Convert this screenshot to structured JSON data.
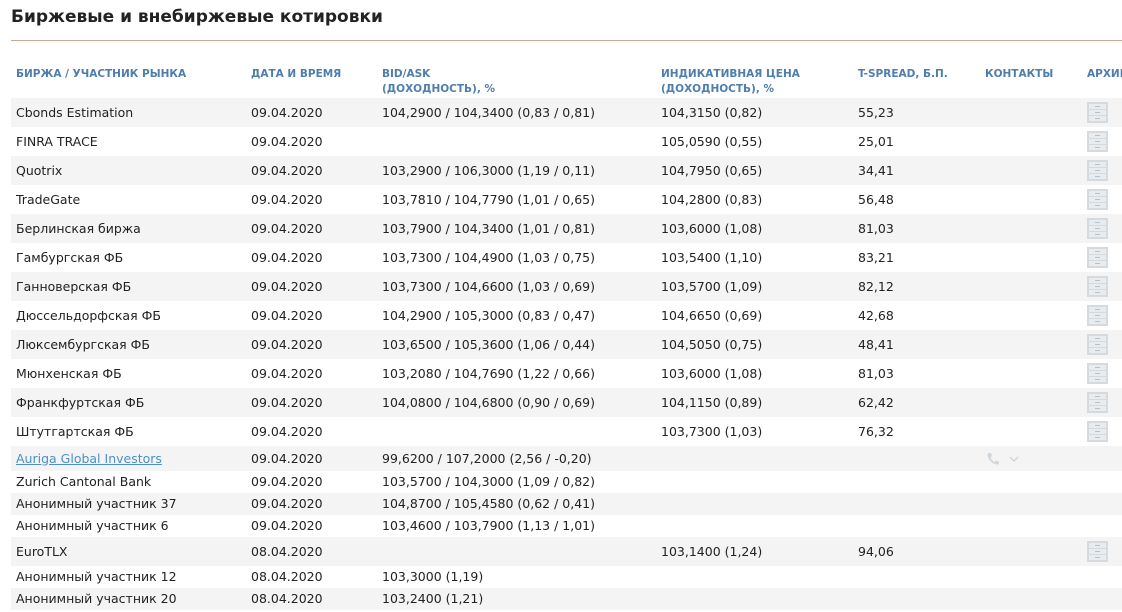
{
  "header": {
    "title": "Биржевые и внебиржевые котировки"
  },
  "table": {
    "columns": [
      [
        "БИРЖА / УЧАСТНИК РЫНКА"
      ],
      [
        "ДАТА И ВРЕМЯ"
      ],
      [
        "BID/ASK",
        "(ДОХОДНОСТЬ), %"
      ],
      [
        "ИНДИКАТИВНАЯ ЦЕНА",
        "(ДОХОДНОСТЬ), %"
      ],
      [
        "T-SPREAD, Б.П."
      ],
      [
        "КОНТАКТЫ"
      ],
      [
        "АРХИВ"
      ]
    ],
    "rows": [
      {
        "cells": [
          "Cbonds Estimation",
          "09.04.2020",
          "104,2900 / 104,3400 (0,83 / 0,81)",
          "104,3150 (0,82)",
          "55,23"
        ],
        "archive": true
      },
      {
        "cells": [
          "FINRA TRACE",
          "09.04.2020",
          null,
          "105,0590 (0,55)",
          "25,01"
        ],
        "archive": true
      },
      {
        "cells": [
          "Quotrix",
          "09.04.2020",
          "103,2900 / 106,3000 (1,19 / 0,11)",
          "104,7950 (0,65)",
          "34,41"
        ],
        "archive": true
      },
      {
        "cells": [
          "TradeGate",
          "09.04.2020",
          "103,7810 / 104,7790 (1,01 / 0,65)",
          "104,2800 (0,83)",
          "56,48"
        ],
        "archive": true
      },
      {
        "cells": [
          "Берлинская биржа",
          "09.04.2020",
          "103,7900 / 104,3400 (1,01 / 0,81)",
          "103,6000 (1,08)",
          "81,03"
        ],
        "archive": true
      },
      {
        "cells": [
          "Гамбургская ФБ",
          "09.04.2020",
          "103,7300 / 104,4900 (1,03 / 0,75)",
          "103,5400 (1,10)",
          "83,21"
        ],
        "archive": true
      },
      {
        "cells": [
          "Ганноверская ФБ",
          "09.04.2020",
          "103,7300 / 104,6600 (1,03 / 0,69)",
          "103,5700 (1,09)",
          "82,12"
        ],
        "archive": true
      },
      {
        "cells": [
          "Дюссельдорфская ФБ",
          "09.04.2020",
          "104,2900 / 105,3000 (0,83 / 0,47)",
          "104,6650 (0,69)",
          "42,68"
        ],
        "archive": true
      },
      {
        "cells": [
          "Люксембургская ФБ",
          "09.04.2020",
          "103,6500 / 105,3600 (1,06 / 0,44)",
          "104,5050 (0,75)",
          "48,41"
        ],
        "archive": true
      },
      {
        "cells": [
          "Мюнхенская ФБ",
          "09.04.2020",
          "103,2080 / 104,7690 (1,22 / 0,66)",
          "103,6000 (1,08)",
          "81,03"
        ],
        "archive": true
      },
      {
        "cells": [
          "Франкфуртская ФБ",
          "09.04.2020",
          "104,0800 / 104,6800 (0,90 / 0,69)",
          "104,1150 (0,89)",
          "62,42"
        ],
        "archive": true
      },
      {
        "cells": [
          "Штутгартская ФБ",
          "09.04.2020",
          null,
          "103,7300 (1,03)",
          "76,32"
        ],
        "archive": true
      },
      {
        "cells": [
          "Auriga Global Investors",
          "09.04.2020",
          "99,6200 / 107,2000 (2,56 / -0,20)",
          null,
          null
        ],
        "link": true,
        "contacts": true
      },
      {
        "cells": [
          "Zurich Cantonal Bank",
          "09.04.2020",
          "103,5700 / 104,3000 (1,09 / 0,82)",
          null,
          null
        ]
      },
      {
        "cells": [
          "Анонимный участник 37",
          "09.04.2020",
          "104,8700 / 105,4580 (0,62 / 0,41)",
          null,
          null
        ]
      },
      {
        "cells": [
          "Анонимный участник 6",
          "09.04.2020",
          "103,4600 / 103,7900 (1,13 / 1,01)",
          null,
          null
        ]
      },
      {
        "cells": [
          "EuroTLX",
          "08.04.2020",
          null,
          "103,1400 (1,24)",
          "94,06"
        ],
        "archive": true
      },
      {
        "cells": [
          "Анонимный участник 12",
          "08.04.2020",
          "103,3000 (1,19)",
          null,
          null
        ]
      },
      {
        "cells": [
          "Анонимный участник 20",
          "08.04.2020",
          "103,2400 (1,21)",
          null,
          null
        ]
      }
    ]
  }
}
